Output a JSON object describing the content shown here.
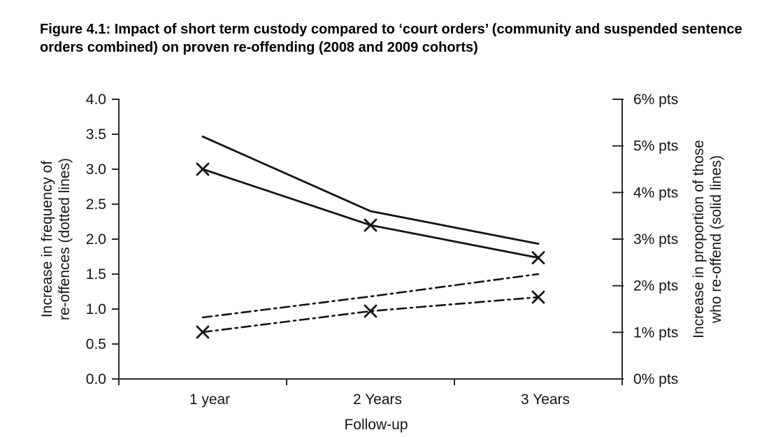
{
  "figure": {
    "title": "Figure 4.1: Impact of short term custody compared to ‘court orders’ (community and suspended sentence orders combined) on proven re-offending (2008 and 2009 cohorts)"
  },
  "chart_data": {
    "type": "line",
    "categories": [
      "1 year",
      "2 Years",
      "3 Years"
    ],
    "xlabel": "Follow-up",
    "left_axis": {
      "title_lines": [
        "Increase in frequency of",
        "re-offences (dotted lines)"
      ],
      "ticks": [
        "4.0",
        "3.5",
        "3.0",
        "2.5",
        "2.0",
        "1.5",
        "1.0",
        "0.5",
        "0.0"
      ],
      "range": [
        0,
        4
      ]
    },
    "right_axis": {
      "title_lines": [
        "Increase in proportion of those",
        "who re-offend (solid lines)"
      ],
      "ticks": [
        "6% pts",
        "5% pts",
        "4% pts",
        "3% pts",
        "2% pts",
        "1% pts",
        "0% pts"
      ],
      "range": [
        0,
        6
      ]
    },
    "series": [
      {
        "name": "proportion-re-offend-plain",
        "axis": "right",
        "style": "solid",
        "marker": "none",
        "values": [
          5.2,
          3.6,
          2.9
        ]
      },
      {
        "name": "proportion-re-offend-marked",
        "axis": "right",
        "style": "solid",
        "marker": "x",
        "values": [
          4.5,
          3.3,
          2.6
        ]
      },
      {
        "name": "frequency-re-offences-plain",
        "axis": "left",
        "style": "dashdot",
        "marker": "none",
        "values": [
          0.88,
          1.18,
          1.5
        ]
      },
      {
        "name": "frequency-re-offences-marked",
        "axis": "left",
        "style": "dashdot",
        "marker": "x",
        "values": [
          0.67,
          0.97,
          1.17
        ]
      }
    ],
    "line_color": "#141414",
    "axis_color": "#2a2a2a",
    "background": "#ffffff",
    "grid": "off",
    "legend": "none"
  }
}
